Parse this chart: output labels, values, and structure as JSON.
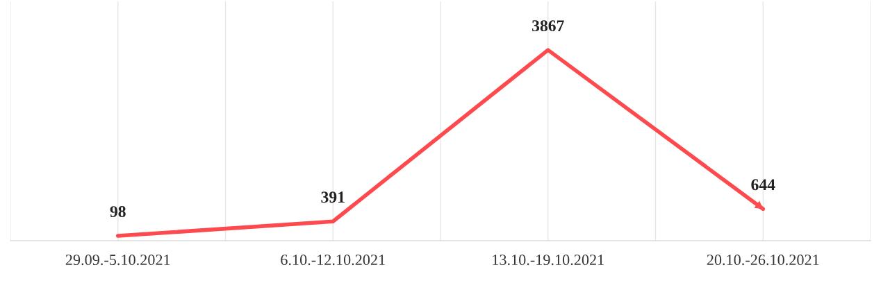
{
  "chart_data": {
    "type": "line",
    "categories": [
      "29.09.-5.10.2021",
      "6.10.-12.10.2021",
      "13.10.-19.10.2021",
      "20.10.-26.10.2021"
    ],
    "series": [
      {
        "color": "#fc4a4f",
        "values": [
          98,
          391,
          3867,
          644
        ]
      }
    ],
    "data_labels": true,
    "grid": "x",
    "marker": "none",
    "line_style": "solid",
    "legend": false
  }
}
